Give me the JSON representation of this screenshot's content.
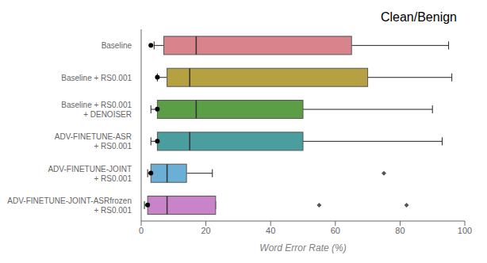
{
  "chart_data": {
    "type": "box",
    "orientation": "horizontal",
    "categories": [
      "Baseline",
      "Baseline + RS0.001",
      "Baseline + RS0.001\n+ DENOISER",
      "ADV-FINETUNE-ASR\n+ RS0.001",
      "ADV-FINETUNE-JOINT\n+ RS0.001",
      "ADV-FINETUNE-JOINT-ASRfrozen\n+ RS0.001"
    ],
    "q1": [
      7,
      8,
      5,
      5,
      3,
      2
    ],
    "median": [
      17,
      15,
      17,
      15,
      8,
      8
    ],
    "q3": [
      65,
      70,
      50,
      50,
      14,
      23
    ],
    "whislo": [
      4,
      5,
      3,
      3,
      2,
      1
    ],
    "whishi": [
      95,
      96,
      90,
      93,
      22,
      23
    ],
    "fliers": [
      [],
      [],
      [],
      [],
      [
        75
      ],
      [
        55,
        82
      ]
    ],
    "colors": [
      "#d9848a",
      "#b5a042",
      "#5b9e45",
      "#4a9e9e",
      "#6baed6",
      "#c983c9"
    ],
    "series": [
      {
        "name": "Clean/Benign",
        "values": [
          3,
          5,
          5,
          5,
          3,
          2
        ],
        "color": "#000000",
        "marker": "circle"
      }
    ],
    "xlabel": "Word Error Rate (%)",
    "xlim": [
      0,
      100
    ],
    "xticks": [
      0,
      20,
      40,
      60,
      80,
      100
    ],
    "legend": "top"
  }
}
